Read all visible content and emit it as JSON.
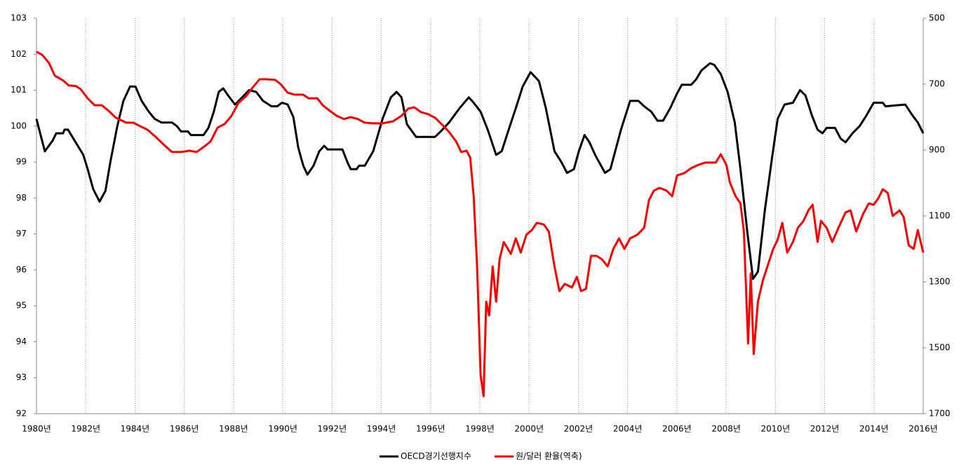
{
  "chart_data": {
    "type": "line",
    "series": [
      {
        "name": "OECD경기선행지수",
        "color": "#000000",
        "axis": "y",
        "x": [
          1980.0,
          1980.34,
          1980.66,
          1980.8,
          1981.08,
          1981.14,
          1981.28,
          1981.5,
          1981.9,
          1982.08,
          1982.3,
          1982.56,
          1982.8,
          1983.0,
          1983.28,
          1983.53,
          1983.8,
          1984.02,
          1984.27,
          1984.56,
          1984.8,
          1985.07,
          1985.5,
          1985.7,
          1985.87,
          1986.15,
          1986.27,
          1986.78,
          1986.98,
          1987.2,
          1987.4,
          1987.58,
          1987.78,
          1988.06,
          1988.35,
          1988.63,
          1988.92,
          1989.2,
          1989.54,
          1989.77,
          1989.97,
          1990.2,
          1990.43,
          1990.63,
          1990.83,
          1991.0,
          1991.25,
          1991.48,
          1991.68,
          1991.82,
          1992.42,
          1992.62,
          1992.76,
          1992.99,
          1993.1,
          1993.33,
          1993.67,
          1994.05,
          1994.39,
          1994.62,
          1994.82,
          1995.04,
          1995.41,
          1996.18,
          1996.41,
          1996.75,
          1997.18,
          1997.55,
          1997.75,
          1998.03,
          1998.32,
          1998.66,
          1998.89,
          1999.17,
          1999.46,
          1999.74,
          2000.06,
          2000.4,
          2000.68,
          2001.03,
          2001.31,
          2001.54,
          2001.82,
          2002.02,
          2002.25,
          2002.45,
          2002.68,
          2003.08,
          2003.3,
          2003.73,
          2004.1,
          2004.44,
          2004.67,
          2004.96,
          2005.21,
          2005.44,
          2005.73,
          2006.0,
          2006.2,
          2006.58,
          2006.78,
          2007.0,
          2007.35,
          2007.52,
          2007.78,
          2008.06,
          2008.35,
          2008.58,
          2008.86,
          2009.09,
          2009.29,
          2009.57,
          2009.86,
          2010.09,
          2010.37,
          2010.71,
          2011.0,
          2011.22,
          2011.48,
          2011.71,
          2011.91,
          2012.08,
          2012.42,
          2012.65,
          2012.85,
          2013.13,
          2013.42,
          2013.7,
          2013.99,
          2014.36,
          2014.47,
          2015.27,
          2015.56,
          2015.78,
          2016.0
        ],
        "values": [
          100.2,
          99.3,
          99.6,
          99.8,
          99.8,
          99.9,
          99.9,
          99.65,
          99.2,
          98.8,
          98.25,
          97.9,
          98.2,
          99.0,
          100.0,
          100.7,
          101.1,
          101.1,
          100.7,
          100.4,
          100.2,
          100.1,
          100.1,
          100.0,
          99.85,
          99.85,
          99.75,
          99.75,
          99.95,
          100.4,
          100.95,
          101.05,
          100.85,
          100.6,
          100.8,
          101.0,
          100.95,
          100.7,
          100.55,
          100.55,
          100.65,
          100.6,
          100.25,
          99.4,
          98.9,
          98.65,
          98.9,
          99.3,
          99.45,
          99.35,
          99.35,
          99.0,
          98.8,
          98.8,
          98.9,
          98.9,
          99.3,
          100.2,
          100.8,
          100.95,
          100.8,
          100.05,
          99.7,
          99.7,
          99.85,
          100.1,
          100.5,
          100.8,
          100.65,
          100.4,
          99.9,
          99.2,
          99.3,
          99.9,
          100.5,
          101.1,
          101.5,
          101.25,
          100.5,
          99.3,
          99.0,
          98.7,
          98.8,
          99.3,
          99.75,
          99.55,
          99.2,
          98.7,
          98.8,
          99.9,
          100.7,
          100.7,
          100.55,
          100.4,
          100.15,
          100.15,
          100.5,
          100.9,
          101.15,
          101.15,
          101.3,
          101.55,
          101.75,
          101.7,
          101.45,
          100.95,
          100.1,
          98.8,
          97.05,
          95.75,
          95.95,
          97.65,
          99.1,
          100.2,
          100.6,
          100.65,
          101.0,
          100.85,
          100.3,
          99.9,
          99.8,
          99.95,
          99.95,
          99.65,
          99.55,
          99.8,
          100.0,
          100.3,
          100.65,
          100.65,
          100.55,
          100.6,
          100.3,
          100.1,
          99.8
        ]
      },
      {
        "name": "원/달러 환율(역축)",
        "color": "#ff0000",
        "axis": "y2",
        "x": [
          1980.0,
          1980.23,
          1980.51,
          1980.74,
          1981.08,
          1981.31,
          1981.6,
          1981.79,
          1982.08,
          1982.36,
          1982.65,
          1982.93,
          1983.22,
          1983.65,
          1983.93,
          1984.22,
          1984.5,
          1984.84,
          1985.13,
          1985.5,
          1985.87,
          1986.21,
          1986.5,
          1986.78,
          1987.07,
          1987.35,
          1987.64,
          1987.92,
          1988.2,
          1988.49,
          1988.77,
          1989.06,
          1989.34,
          1989.69,
          1989.91,
          1990.2,
          1990.48,
          1990.83,
          1991.05,
          1991.4,
          1991.62,
          1991.91,
          1992.19,
          1992.48,
          1992.76,
          1993.05,
          1993.33,
          1993.68,
          1994.05,
          1994.47,
          1994.82,
          1995.1,
          1995.33,
          1995.61,
          1995.9,
          1996.18,
          1996.47,
          1996.75,
          1997.04,
          1997.24,
          1997.46,
          1997.61,
          1997.75,
          1997.89,
          1998.03,
          1998.15,
          1998.26,
          1998.38,
          1998.52,
          1998.66,
          1998.8,
          1998.97,
          1999.26,
          1999.46,
          1999.66,
          1999.89,
          2000.11,
          2000.31,
          2000.6,
          2000.8,
          2001.03,
          2001.23,
          2001.45,
          2001.74,
          2001.94,
          2002.11,
          2002.31,
          2002.51,
          2002.74,
          2002.96,
          2003.19,
          2003.42,
          2003.65,
          2003.87,
          2004.1,
          2004.39,
          2004.67,
          2004.87,
          2005.07,
          2005.3,
          2005.58,
          2005.81,
          2006.01,
          2006.3,
          2006.58,
          2006.87,
          2007.15,
          2007.58,
          2007.78,
          2008.01,
          2008.15,
          2008.38,
          2008.58,
          2008.72,
          2008.89,
          2009.0,
          2009.12,
          2009.29,
          2009.49,
          2009.72,
          2009.91,
          2010.09,
          2010.28,
          2010.48,
          2010.71,
          2010.91,
          2011.14,
          2011.34,
          2011.51,
          2011.71,
          2011.85,
          2012.08,
          2012.31,
          2012.56,
          2012.85,
          2013.05,
          2013.28,
          2013.56,
          2013.79,
          2013.99,
          2014.19,
          2014.36,
          2014.56,
          2014.76,
          2015.04,
          2015.21,
          2015.41,
          2015.61,
          2015.78,
          2016.0
        ],
        "values": [
          602,
          611,
          636,
          674,
          689,
          704,
          706,
          715,
          743,
          764,
          764,
          781,
          802,
          817,
          817,
          828,
          838,
          860,
          881,
          906,
          906,
          902,
          906,
          891,
          874,
          832,
          821,
          796,
          757,
          738,
          711,
          685,
          685,
          687,
          700,
          726,
          732,
          732,
          743,
          743,
          764,
          781,
          796,
          806,
          800,
          806,
          817,
          819,
          819,
          813,
          796,
          774,
          770,
          785,
          791,
          802,
          823,
          845,
          874,
          906,
          902,
          923,
          1040,
          1253,
          1583,
          1647,
          1360,
          1402,
          1253,
          1360,
          1232,
          1179,
          1215,
          1168,
          1211,
          1157,
          1143,
          1121,
          1126,
          1147,
          1253,
          1328,
          1306,
          1317,
          1285,
          1328,
          1321,
          1221,
          1221,
          1232,
          1253,
          1200,
          1168,
          1200,
          1168,
          1157,
          1136,
          1051,
          1023,
          1015,
          1023,
          1040,
          977,
          970,
          955,
          945,
          938,
          938,
          913,
          945,
          998,
          1040,
          1062,
          1147,
          1487,
          1274,
          1519,
          1360,
          1296,
          1243,
          1200,
          1172,
          1121,
          1211,
          1179,
          1136,
          1115,
          1083,
          1066,
          1179,
          1115,
          1136,
          1179,
          1136,
          1089,
          1083,
          1147,
          1094,
          1062,
          1066,
          1045,
          1019,
          1030,
          1100,
          1083,
          1104,
          1189,
          1200,
          1143,
          1211
        ]
      }
    ],
    "xlim": [
      1980,
      2016
    ],
    "xticks": [
      {
        "value": 1980,
        "label": "1980년"
      },
      {
        "value": 1982,
        "label": "1982년"
      },
      {
        "value": 1984,
        "label": "1984년"
      },
      {
        "value": 1986,
        "label": "1986년"
      },
      {
        "value": 1988,
        "label": "1988년"
      },
      {
        "value": 1990,
        "label": "1990년"
      },
      {
        "value": 1992,
        "label": "1992년"
      },
      {
        "value": 1994,
        "label": "1994년"
      },
      {
        "value": 1996,
        "label": "1996년"
      },
      {
        "value": 1998,
        "label": "1998년"
      },
      {
        "value": 2000,
        "label": "2000년"
      },
      {
        "value": 2002,
        "label": "2002년"
      },
      {
        "value": 2004,
        "label": "2004년"
      },
      {
        "value": 2006,
        "label": "2006년"
      },
      {
        "value": 2008,
        "label": "2008년"
      },
      {
        "value": 2010,
        "label": "2010년"
      },
      {
        "value": 2012,
        "label": "2012년"
      },
      {
        "value": 2014,
        "label": "2014년"
      },
      {
        "value": 2016,
        "label": "2016년"
      }
    ],
    "ylim": [
      92,
      103
    ],
    "yticks": [
      92,
      93,
      94,
      95,
      96,
      97,
      98,
      99,
      100,
      101,
      102,
      103
    ],
    "y2lim": [
      500,
      1700
    ],
    "y2ticks": [
      500,
      700,
      900,
      1100,
      1300,
      1500,
      1700
    ],
    "y2_inverted": true,
    "grid": "x",
    "legend": "bottom"
  }
}
